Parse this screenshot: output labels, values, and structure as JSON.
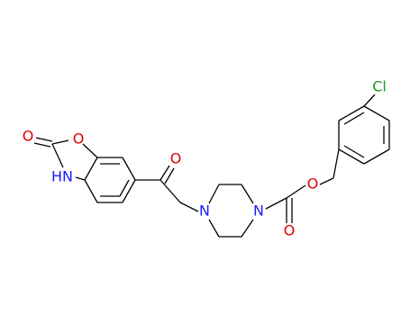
{
  "atoms": [
    {
      "label": "Cl"
    },
    {
      "label": "O"
    },
    {
      "label": "O"
    },
    {
      "label": "N"
    },
    {
      "label": "N"
    },
    {
      "label": "O"
    },
    {
      "label": "O"
    },
    {
      "label": "O"
    },
    {
      "label": "HN"
    }
  ]
}
